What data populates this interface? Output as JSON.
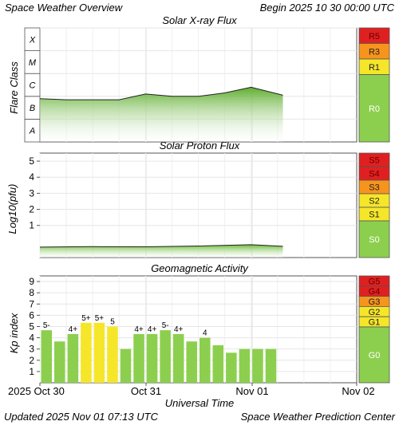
{
  "header": {
    "title": "Space Weather Overview",
    "begin": "Begin 2025 10 30 00:00 UTC"
  },
  "footer": {
    "updated": "Updated 2025 Nov 01 07:13 UTC",
    "credit": "Space Weather Prediction Center"
  },
  "colors": {
    "series_green": "#8ccf4e",
    "storm_red": "#e02020",
    "orange": "#f7941d",
    "yellow": "#f5e62a",
    "calm_green": "#8ccf4e"
  },
  "chart_data": [
    {
      "type": "area",
      "title": "Solar X-ray Flux",
      "ylabel": "Flare Class",
      "y_classes": [
        "A",
        "B",
        "C",
        "M",
        "X"
      ],
      "ylim": [
        0,
        5
      ],
      "x": [
        "2025-10-30",
        "2025-10-30 06:00",
        "2025-10-30 12:00",
        "2025-10-30 18:00",
        "2025-10-31",
        "2025-10-31 06:00",
        "2025-10-31 12:00",
        "2025-10-31 18:00",
        "2025-11-01",
        "2025-11-01 07:13"
      ],
      "values": [
        1.9,
        1.85,
        1.85,
        1.85,
        2.1,
        2.0,
        2.0,
        2.15,
        2.4,
        2.05
      ],
      "scale_labels": [
        {
          "label": "R5",
          "level": "high"
        },
        {
          "label": "R3",
          "level": "mid"
        },
        {
          "label": "R1",
          "level": "low"
        },
        {
          "label": "R0",
          "level": "none"
        }
      ]
    },
    {
      "type": "area",
      "title": "Solar Proton Flux",
      "ylabel": "Log10(pfu)",
      "yticks": [
        "1",
        "2",
        "3",
        "4",
        "5"
      ],
      "ylim": [
        -1,
        5.5
      ],
      "x": [
        "2025-10-30",
        "2025-10-30 12:00",
        "2025-10-31",
        "2025-10-31 12:00",
        "2025-11-01",
        "2025-11-01 07:13"
      ],
      "values": [
        -0.35,
        -0.32,
        -0.33,
        -0.28,
        -0.2,
        -0.3
      ],
      "scale_labels": [
        {
          "label": "S5",
          "level": "high"
        },
        {
          "label": "S4",
          "level": "high"
        },
        {
          "label": "S3",
          "level": "mid"
        },
        {
          "label": "S2",
          "level": "low"
        },
        {
          "label": "S1",
          "level": "low"
        },
        {
          "label": "S0",
          "level": "none"
        }
      ]
    },
    {
      "type": "bar",
      "title": "Geomagnetic Activity",
      "ylabel": "Kp index",
      "yticks": [
        "1",
        "2",
        "3",
        "4",
        "5",
        "6",
        "7",
        "8",
        "9"
      ],
      "ylim": [
        0,
        9.5
      ],
      "values": [
        4.67,
        3.67,
        4.33,
        5.33,
        5.33,
        5.0,
        3.0,
        4.33,
        4.33,
        4.67,
        4.33,
        3.67,
        4.0,
        3.33,
        2.67,
        3.0,
        3.0,
        3.0
      ],
      "labels": [
        "5-",
        "",
        "4+",
        "5+",
        "5+",
        "5",
        "",
        "4+",
        "4+",
        "5-",
        "4+",
        "",
        "4",
        "",
        "",
        "",
        "",
        ""
      ],
      "highlight": [
        false,
        false,
        false,
        true,
        true,
        true,
        false,
        false,
        false,
        false,
        false,
        false,
        false,
        false,
        false,
        false,
        false,
        false
      ],
      "scale_labels": [
        {
          "label": "G5",
          "level": "high"
        },
        {
          "label": "G4",
          "level": "high"
        },
        {
          "label": "G3",
          "level": "mid"
        },
        {
          "label": "G2",
          "level": "low"
        },
        {
          "label": "G1",
          "level": "low"
        },
        {
          "label": "G0",
          "level": "none"
        }
      ]
    }
  ],
  "xaxis": {
    "ticks": [
      "2025 Oct 30",
      "Oct 31",
      "Nov 01",
      "Nov 02"
    ],
    "label": "Universal Time"
  }
}
